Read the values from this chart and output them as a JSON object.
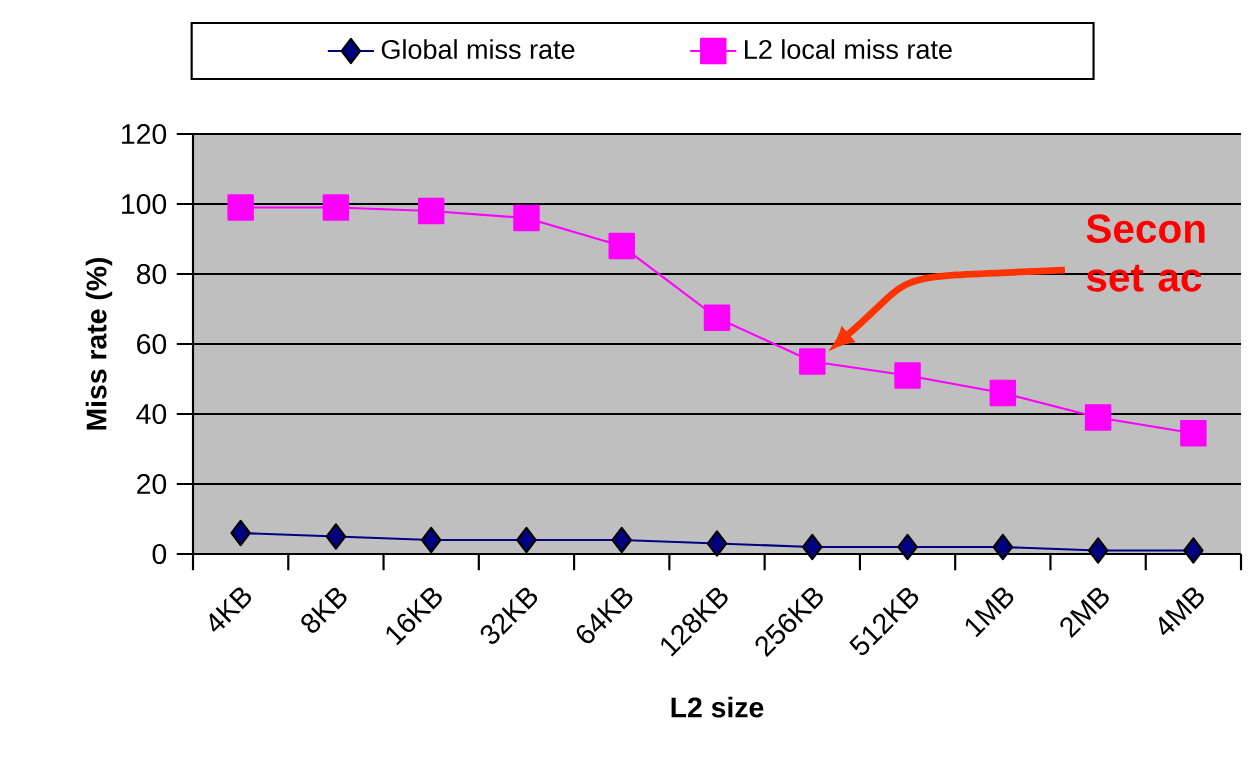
{
  "chart_data": {
    "type": "line",
    "xlabel": "L2 size",
    "ylabel": "Miss rate (%)",
    "categories": [
      "4KB",
      "8KB",
      "16KB",
      "32KB",
      "64KB",
      "128KB",
      "256KB",
      "512KB",
      "1MB",
      "2MB",
      "4MB"
    ],
    "series": [
      {
        "name": "Global miss rate",
        "color": "#000080",
        "marker": "diamond",
        "values": [
          6,
          5,
          4,
          4,
          4,
          3,
          2,
          2,
          2,
          1,
          1
        ]
      },
      {
        "name": "L2 local miss rate",
        "color": "#ff00ff",
        "marker": "square",
        "values": [
          99,
          99,
          98,
          96,
          88,
          67.5,
          55,
          51,
          46,
          39,
          34.5
        ]
      }
    ],
    "ylim": [
      0,
      120
    ],
    "yticks": [
      0,
      20,
      40,
      60,
      80,
      100,
      120
    ],
    "grid": "y",
    "legend": "top",
    "annotations": [
      "Secon set ac"
    ]
  }
}
